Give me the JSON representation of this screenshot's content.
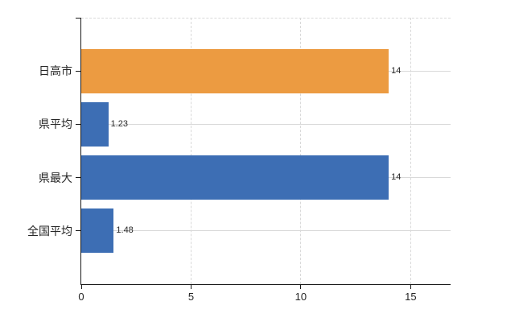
{
  "chart_data": {
    "type": "bar",
    "orientation": "horizontal",
    "title": "",
    "xlabel": "",
    "ylabel": "",
    "categories": [
      "日高市",
      "県平均",
      "県最大",
      "全国平均"
    ],
    "values": [
      14,
      1.23,
      14,
      1.48
    ],
    "value_labels": [
      "14",
      "1.23",
      "14",
      "1.48"
    ],
    "bar_colors": [
      "#ec9b41",
      "#3d6eb4",
      "#3d6eb4",
      "#3d6eb4"
    ],
    "xlim": [
      0,
      16.8
    ],
    "xticks": [
      0,
      5,
      10,
      15
    ],
    "xtick_labels": [
      "0",
      "5",
      "10",
      "15"
    ],
    "legend": "none",
    "grid": {
      "vertical_style": "dashed",
      "horizontal_category_lines": true,
      "top_border_style": "dashed",
      "color": "#d9d9d9"
    },
    "colors": {
      "axis": "#1a1a1a",
      "text": "#262626",
      "background": "#ffffff"
    }
  }
}
